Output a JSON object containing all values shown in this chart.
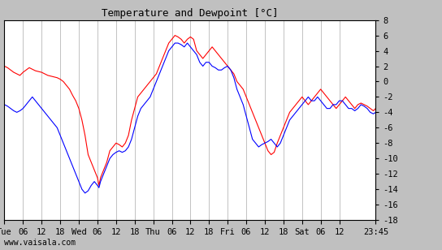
{
  "title": "Temperature and Dewpoint [°C]",
  "ylabel_right_ticks": [
    8,
    6,
    4,
    2,
    0,
    -2,
    -4,
    -6,
    -8,
    -10,
    -12,
    -14,
    -16,
    -18
  ],
  "ylim": [
    -18,
    8
  ],
  "background_color": "#c0c0c0",
  "plot_bg_color": "#ffffff",
  "grid_color": "#aaaaaa",
  "temp_color": "red",
  "dewpoint_color": "blue",
  "watermark": "www.vaisala.com",
  "xtick_labels": [
    "Tue",
    "06",
    "12",
    "18",
    "Wed",
    "06",
    "12",
    "18",
    "Thu",
    "06",
    "12",
    "18",
    "Fri",
    "06",
    "12",
    "18",
    "Sat",
    "06",
    "12",
    "23:45"
  ],
  "xtick_positions": [
    0,
    6,
    12,
    18,
    24,
    30,
    36,
    42,
    48,
    54,
    60,
    66,
    72,
    78,
    84,
    90,
    96,
    102,
    108,
    119.75
  ],
  "total_hours": 119.75,
  "temp_data": [
    [
      0,
      2.0
    ],
    [
      1,
      1.8
    ],
    [
      2,
      1.5
    ],
    [
      3,
      1.2
    ],
    [
      4,
      1.0
    ],
    [
      5,
      0.8
    ],
    [
      6,
      1.2
    ],
    [
      7,
      1.5
    ],
    [
      8,
      1.8
    ],
    [
      9,
      1.6
    ],
    [
      10,
      1.4
    ],
    [
      11,
      1.3
    ],
    [
      12,
      1.2
    ],
    [
      13,
      1.0
    ],
    [
      14,
      0.8
    ],
    [
      15,
      0.7
    ],
    [
      16,
      0.6
    ],
    [
      17,
      0.5
    ],
    [
      18,
      0.3
    ],
    [
      19,
      0.0
    ],
    [
      20,
      -0.5
    ],
    [
      21,
      -1.0
    ],
    [
      22,
      -1.8
    ],
    [
      23,
      -2.5
    ],
    [
      24,
      -3.5
    ],
    [
      25,
      -5.0
    ],
    [
      26,
      -7.0
    ],
    [
      27,
      -9.5
    ],
    [
      28,
      -10.5
    ],
    [
      29,
      -11.5
    ],
    [
      30,
      -12.5
    ],
    [
      30.5,
      -13.5
    ],
    [
      31,
      -12.5
    ],
    [
      31.5,
      -12.0
    ],
    [
      32,
      -11.5
    ],
    [
      33,
      -10.5
    ],
    [
      34,
      -9.0
    ],
    [
      35,
      -8.5
    ],
    [
      36,
      -8.0
    ],
    [
      37,
      -8.2
    ],
    [
      38,
      -8.5
    ],
    [
      39,
      -8.0
    ],
    [
      40,
      -7.0
    ],
    [
      41,
      -5.0
    ],
    [
      42,
      -3.5
    ],
    [
      43,
      -2.0
    ],
    [
      44,
      -1.5
    ],
    [
      45,
      -1.0
    ],
    [
      46,
      -0.5
    ],
    [
      47,
      0.0
    ],
    [
      48,
      0.5
    ],
    [
      49,
      1.0
    ],
    [
      50,
      2.0
    ],
    [
      51,
      3.0
    ],
    [
      52,
      4.0
    ],
    [
      53,
      5.0
    ],
    [
      54,
      5.5
    ],
    [
      55,
      6.0
    ],
    [
      56,
      5.8
    ],
    [
      57,
      5.5
    ],
    [
      58,
      5.0
    ],
    [
      59,
      5.5
    ],
    [
      60,
      5.8
    ],
    [
      61,
      5.5
    ],
    [
      62,
      4.0
    ],
    [
      63,
      3.5
    ],
    [
      64,
      3.0
    ],
    [
      65,
      3.5
    ],
    [
      66,
      4.0
    ],
    [
      67,
      4.5
    ],
    [
      68,
      4.0
    ],
    [
      69,
      3.5
    ],
    [
      70,
      3.0
    ],
    [
      71,
      2.5
    ],
    [
      72,
      2.0
    ],
    [
      73,
      1.5
    ],
    [
      74,
      1.0
    ],
    [
      75,
      0.0
    ],
    [
      76,
      -0.5
    ],
    [
      77,
      -1.0
    ],
    [
      78,
      -2.0
    ],
    [
      79,
      -3.0
    ],
    [
      80,
      -4.0
    ],
    [
      81,
      -5.0
    ],
    [
      82,
      -6.0
    ],
    [
      83,
      -7.0
    ],
    [
      84,
      -8.0
    ],
    [
      85,
      -9.0
    ],
    [
      86,
      -9.5
    ],
    [
      87,
      -9.2
    ],
    [
      88,
      -8.0
    ],
    [
      89,
      -7.0
    ],
    [
      90,
      -6.0
    ],
    [
      91,
      -5.0
    ],
    [
      92,
      -4.0
    ],
    [
      93,
      -3.5
    ],
    [
      94,
      -3.0
    ],
    [
      95,
      -2.5
    ],
    [
      96,
      -2.0
    ],
    [
      97,
      -2.5
    ],
    [
      98,
      -3.0
    ],
    [
      99,
      -2.5
    ],
    [
      100,
      -2.0
    ],
    [
      101,
      -1.5
    ],
    [
      102,
      -1.0
    ],
    [
      103,
      -1.5
    ],
    [
      104,
      -2.0
    ],
    [
      105,
      -2.5
    ],
    [
      106,
      -3.0
    ],
    [
      107,
      -3.5
    ],
    [
      108,
      -3.0
    ],
    [
      109,
      -2.5
    ],
    [
      110,
      -2.0
    ],
    [
      111,
      -2.5
    ],
    [
      112,
      -3.0
    ],
    [
      113,
      -3.5
    ],
    [
      114,
      -3.0
    ],
    [
      115,
      -2.8
    ],
    [
      116,
      -3.0
    ],
    [
      117,
      -3.2
    ],
    [
      118,
      -3.5
    ],
    [
      119,
      -3.8
    ],
    [
      119.75,
      -3.5
    ]
  ],
  "dewpoint_data": [
    [
      0,
      -3.0
    ],
    [
      1,
      -3.2
    ],
    [
      2,
      -3.5
    ],
    [
      3,
      -3.8
    ],
    [
      4,
      -4.0
    ],
    [
      5,
      -3.8
    ],
    [
      6,
      -3.5
    ],
    [
      7,
      -3.0
    ],
    [
      8,
      -2.5
    ],
    [
      9,
      -2.0
    ],
    [
      10,
      -2.5
    ],
    [
      11,
      -3.0
    ],
    [
      12,
      -3.5
    ],
    [
      13,
      -4.0
    ],
    [
      14,
      -4.5
    ],
    [
      15,
      -5.0
    ],
    [
      16,
      -5.5
    ],
    [
      17,
      -6.0
    ],
    [
      18,
      -7.0
    ],
    [
      19,
      -8.0
    ],
    [
      20,
      -9.0
    ],
    [
      21,
      -10.0
    ],
    [
      22,
      -11.0
    ],
    [
      23,
      -12.0
    ],
    [
      24,
      -13.0
    ],
    [
      25,
      -14.0
    ],
    [
      26,
      -14.5
    ],
    [
      27,
      -14.2
    ],
    [
      28,
      -13.5
    ],
    [
      29,
      -13.0
    ],
    [
      30,
      -13.5
    ],
    [
      30.5,
      -13.8
    ],
    [
      31,
      -13.0
    ],
    [
      31.5,
      -12.5
    ],
    [
      32,
      -12.0
    ],
    [
      33,
      -11.0
    ],
    [
      34,
      -10.0
    ],
    [
      35,
      -9.5
    ],
    [
      36,
      -9.2
    ],
    [
      37,
      -9.0
    ],
    [
      38,
      -9.2
    ],
    [
      39,
      -9.0
    ],
    [
      40,
      -8.5
    ],
    [
      41,
      -7.5
    ],
    [
      42,
      -6.0
    ],
    [
      43,
      -4.5
    ],
    [
      44,
      -3.5
    ],
    [
      45,
      -3.0
    ],
    [
      46,
      -2.5
    ],
    [
      47,
      -2.0
    ],
    [
      48,
      -1.0
    ],
    [
      49,
      0.0
    ],
    [
      50,
      1.0
    ],
    [
      51,
      2.0
    ],
    [
      52,
      3.0
    ],
    [
      53,
      4.0
    ],
    [
      54,
      4.5
    ],
    [
      55,
      5.0
    ],
    [
      56,
      5.0
    ],
    [
      57,
      4.8
    ],
    [
      58,
      4.5
    ],
    [
      59,
      5.0
    ],
    [
      60,
      4.5
    ],
    [
      61,
      4.0
    ],
    [
      62,
      3.5
    ],
    [
      63,
      2.5
    ],
    [
      64,
      2.0
    ],
    [
      65,
      2.5
    ],
    [
      66,
      2.5
    ],
    [
      67,
      2.0
    ],
    [
      68,
      1.8
    ],
    [
      69,
      1.5
    ],
    [
      70,
      1.5
    ],
    [
      71,
      1.8
    ],
    [
      72,
      2.0
    ],
    [
      73,
      1.5
    ],
    [
      74,
      0.5
    ],
    [
      75,
      -1.0
    ],
    [
      76,
      -2.0
    ],
    [
      77,
      -3.0
    ],
    [
      78,
      -4.5
    ],
    [
      79,
      -6.0
    ],
    [
      80,
      -7.5
    ],
    [
      81,
      -8.0
    ],
    [
      82,
      -8.5
    ],
    [
      83,
      -8.2
    ],
    [
      84,
      -8.0
    ],
    [
      85,
      -7.8
    ],
    [
      86,
      -7.5
    ],
    [
      87,
      -8.0
    ],
    [
      88,
      -8.5
    ],
    [
      89,
      -8.0
    ],
    [
      90,
      -7.0
    ],
    [
      91,
      -6.0
    ],
    [
      92,
      -5.0
    ],
    [
      93,
      -4.5
    ],
    [
      94,
      -4.0
    ],
    [
      95,
      -3.5
    ],
    [
      96,
      -3.0
    ],
    [
      97,
      -2.5
    ],
    [
      98,
      -2.0
    ],
    [
      99,
      -2.5
    ],
    [
      100,
      -2.5
    ],
    [
      101,
      -2.0
    ],
    [
      102,
      -2.5
    ],
    [
      103,
      -3.0
    ],
    [
      104,
      -3.5
    ],
    [
      105,
      -3.5
    ],
    [
      106,
      -3.0
    ],
    [
      107,
      -3.0
    ],
    [
      108,
      -2.5
    ],
    [
      109,
      -2.5
    ],
    [
      110,
      -3.0
    ],
    [
      111,
      -3.5
    ],
    [
      112,
      -3.5
    ],
    [
      113,
      -3.8
    ],
    [
      114,
      -3.5
    ],
    [
      115,
      -3.0
    ],
    [
      116,
      -3.2
    ],
    [
      117,
      -3.5
    ],
    [
      118,
      -4.0
    ],
    [
      119,
      -4.2
    ],
    [
      119.75,
      -4.0
    ]
  ]
}
